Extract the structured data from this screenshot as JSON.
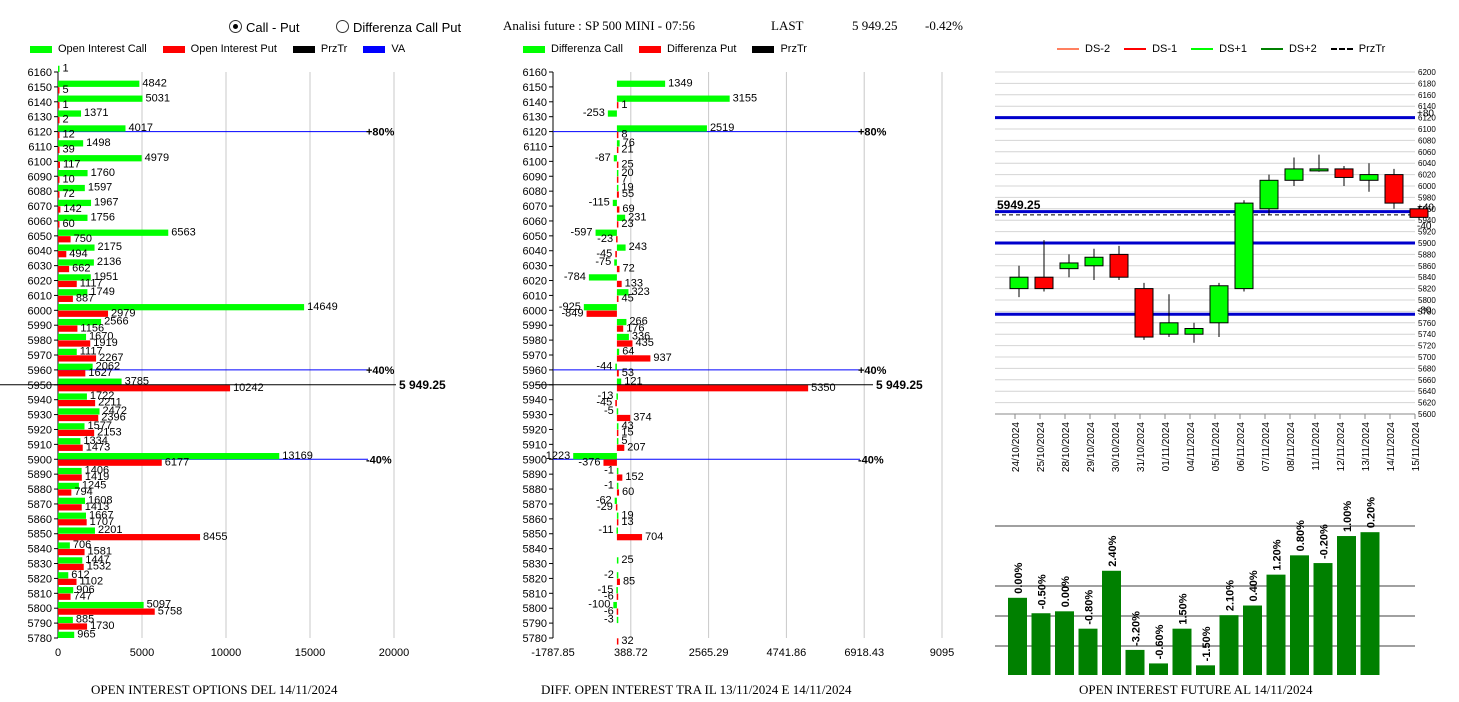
{
  "header": {
    "radio_call_put": "Call - Put",
    "radio_diff": "Differenza Call Put",
    "title": "Analisi future : SP 500 MINI - 07:56",
    "last_label": "LAST",
    "last_value": "5 949.25",
    "last_change": "-0.42%"
  },
  "panel1": {
    "legend": [
      {
        "label": "Open Interest Call",
        "color": "#00ff00",
        "kind": "box"
      },
      {
        "label": "Open Interest Put",
        "color": "#ff0000",
        "kind": "box"
      },
      {
        "label": "PrzTr",
        "color": "#000000",
        "kind": "box"
      },
      {
        "label": "VA",
        "color": "#0000ff",
        "kind": "box"
      }
    ],
    "caption": "OPEN INTEREST OPTIONS DEL 14/11/2024"
  },
  "panel2": {
    "legend": [
      {
        "label": "Differenza Call",
        "color": "#00ff00",
        "kind": "box"
      },
      {
        "label": "Differenza Put",
        "color": "#ff0000",
        "kind": "box"
      },
      {
        "label": "PrzTr",
        "color": "#000000",
        "kind": "box"
      }
    ],
    "caption": "DIFF. OPEN INTEREST TRA IL 13/11/2024 E 14/11/2024"
  },
  "panel3": {
    "legend": [
      {
        "label": "DS-2",
        "color": "#ff8060",
        "kind": "line"
      },
      {
        "label": "DS-1",
        "color": "#ff0000",
        "kind": "line"
      },
      {
        "label": "DS+1",
        "color": "#00ff00",
        "kind": "line"
      },
      {
        "label": "DS+2",
        "color": "#008000",
        "kind": "line"
      },
      {
        "label": "PrzTr",
        "color": "#000000",
        "kind": "dash"
      }
    ],
    "caption": "OPEN INTEREST FUTURE AL 14/11/2024"
  },
  "chart_data": [
    {
      "type": "bar",
      "orientation": "horizontal",
      "title": "OPEN INTEREST OPTIONS DEL 14/11/2024",
      "categories": [
        6160,
        6150,
        6140,
        6130,
        6120,
        6110,
        6100,
        6090,
        6080,
        6070,
        6060,
        6050,
        6040,
        6030,
        6020,
        6010,
        6000,
        5990,
        5980,
        5970,
        5960,
        5950,
        5940,
        5930,
        5920,
        5910,
        5900,
        5890,
        5880,
        5870,
        5860,
        5850,
        5840,
        5830,
        5820,
        5810,
        5800,
        5790,
        5780
      ],
      "series": [
        {
          "name": "Open Interest Call",
          "color": "#00ff00",
          "values": [
            1,
            4842,
            5031,
            1371,
            4017,
            1498,
            4979,
            1760,
            1597,
            1967,
            1756,
            6563,
            2175,
            2136,
            1951,
            1749,
            14649,
            2566,
            1670,
            1117,
            2062,
            3785,
            1722,
            2472,
            1577,
            1334,
            13169,
            1406,
            1245,
            1608,
            1667,
            2201,
            706,
            1447,
            612,
            906,
            5097,
            885,
            965
          ]
        },
        {
          "name": "Open Interest Put",
          "color": "#ff0000",
          "values": [
            null,
            5,
            1,
            2,
            12,
            39,
            117,
            10,
            72,
            142,
            60,
            750,
            494,
            662,
            1117,
            887,
            2979,
            1156,
            1919,
            2267,
            1627,
            10242,
            2211,
            2396,
            2153,
            1473,
            6177,
            1419,
            794,
            1413,
            1707,
            8455,
            1581,
            1532,
            1102,
            747,
            5758,
            1730,
            null
          ]
        }
      ],
      "xticks": [
        0,
        5000,
        10000,
        15000,
        20000
      ],
      "xlim": [
        0,
        20000
      ],
      "ref_lines": [
        {
          "label": "+80%",
          "at": 6120
        },
        {
          "label": "+40%",
          "at": 5960
        },
        {
          "label": "-40%",
          "at": 5900
        }
      ],
      "price_line": {
        "label": "5 949.25",
        "at": 5950
      }
    },
    {
      "type": "bar",
      "orientation": "horizontal",
      "title": "DIFF. OPEN INTEREST TRA IL 13/11/2024 E 14/11/2024",
      "categories": [
        6160,
        6150,
        6140,
        6130,
        6120,
        6110,
        6100,
        6090,
        6080,
        6070,
        6060,
        6050,
        6040,
        6030,
        6020,
        6010,
        6000,
        5990,
        5980,
        5970,
        5960,
        5950,
        5940,
        5930,
        5920,
        5910,
        5900,
        5890,
        5880,
        5870,
        5860,
        5850,
        5840,
        5830,
        5820,
        5810,
        5800,
        5790,
        5780
      ],
      "series": [
        {
          "name": "Differenza Call",
          "color": "#00ff00",
          "values": [
            null,
            1349,
            3155,
            -253,
            2519,
            76,
            -87,
            20,
            19,
            -115,
            231,
            -597,
            243,
            -75,
            -784,
            323,
            -925,
            266,
            336,
            64,
            -44,
            121,
            -13,
            -5,
            43,
            5,
            -1223,
            -1,
            -1,
            -62,
            19,
            -11,
            null,
            25,
            -2,
            -15,
            -100,
            -3,
            null
          ]
        },
        {
          "name": "Differenza Put",
          "color": "#ff0000",
          "values": [
            null,
            null,
            1,
            null,
            8,
            21,
            25,
            7,
            55,
            69,
            23,
            -23,
            -45,
            72,
            133,
            45,
            -849,
            176,
            435,
            937,
            53,
            5350,
            -45,
            374,
            15,
            207,
            -376,
            152,
            60,
            -29,
            13,
            704,
            null,
            null,
            85,
            -6,
            -6,
            null,
            32
          ]
        }
      ],
      "xticks": [
        -1787.85,
        388.72,
        2565.29,
        4741.86,
        6918.43,
        9095
      ],
      "xlim": [
        -1787.85,
        9095
      ],
      "ref_lines": [
        {
          "label": "+80%",
          "at": 6120
        },
        {
          "label": "+40%",
          "at": 5960
        },
        {
          "label": "-40%",
          "at": 5900
        }
      ],
      "price_line": {
        "label": "5 949.25",
        "at": 5950
      }
    },
    {
      "type": "candlestick",
      "dates": [
        "24/10/2024",
        "25/10/2024",
        "28/10/2024",
        "29/10/2024",
        "30/10/2024",
        "31/10/2024",
        "01/11/2024",
        "04/11/2024",
        "05/11/2024",
        "06/11/2024",
        "07/11/2024",
        "08/11/2024",
        "11/11/2024",
        "12/11/2024",
        "13/11/2024",
        "14/11/2024",
        "15/11/2024"
      ],
      "open": [
        5820,
        5840,
        5855,
        5860,
        5880,
        5820,
        5740,
        5740,
        5760,
        5820,
        5960,
        6010,
        6030,
        6030,
        6010,
        6020,
        5960
      ],
      "close": [
        5840,
        5820,
        5865,
        5875,
        5840,
        5735,
        5760,
        5750,
        5825,
        5970,
        6010,
        6030,
        6030,
        6015,
        6020,
        5970,
        5945
      ],
      "high": [
        5860,
        5905,
        5880,
        5890,
        5895,
        5830,
        5810,
        5760,
        5830,
        5975,
        6020,
        6050,
        6055,
        6035,
        6040,
        6030,
        5965
      ],
      "low": [
        5805,
        5815,
        5840,
        5835,
        5835,
        5730,
        5735,
        5725,
        5735,
        5815,
        5950,
        6000,
        6025,
        6000,
        5990,
        5960,
        5940
      ],
      "ylim": [
        5600,
        6200
      ],
      "yticks": [
        5600,
        5620,
        5640,
        5660,
        5680,
        5700,
        5720,
        5740,
        5760,
        5780,
        5800,
        5820,
        5840,
        5860,
        5880,
        5900,
        5920,
        5940,
        5960,
        5980,
        6000,
        6020,
        6040,
        6060,
        6080,
        6100,
        6120,
        6140,
        6160,
        6180,
        6200
      ],
      "hlines": [
        {
          "at": 6120,
          "label": "+80"
        },
        {
          "at": 5955,
          "label": "+40"
        },
        {
          "at": 5900,
          "label": ""
        },
        {
          "at": 5775,
          "label": "-80"
        }
      ],
      "side_label_minus40": "-40",
      "price_label": "5949.25",
      "price": 5949.25
    },
    {
      "type": "bar",
      "categories": [
        "24/10/2024",
        "25/10/2024",
        "28/10/2024",
        "29/10/2024",
        "30/10/2024",
        "31/10/2024",
        "01/11/2024",
        "04/11/2024",
        "05/11/2024",
        "06/11/2024",
        "07/11/2024",
        "08/11/2024",
        "11/11/2024",
        "12/11/2024",
        "13/11/2024",
        "14/11/2024",
        "15/11/2024"
      ],
      "values": [
        0.0,
        -0.5,
        0.0,
        -0.8,
        2.4,
        -3.2,
        -0.6,
        1.5,
        -1.5,
        2.1,
        0.4,
        1.2,
        0.8,
        -0.2,
        1.0,
        0.2
      ],
      "labels": [
        "0.00%",
        "-0.50%",
        "0.00%",
        "-0.80%",
        "2.40%",
        "-3.20%",
        "-0.60%",
        "1.50%",
        "-1.50%",
        "2.10%",
        "0.40%",
        "1.20%",
        "0.80%",
        "-0.20%",
        "1.00%",
        "0.20%"
      ],
      "level": [
        0.4,
        0.32,
        0.33,
        0.24,
        0.54,
        0.13,
        0.06,
        0.24,
        0.05,
        0.31,
        0.36,
        0.52,
        0.62,
        0.58,
        0.72,
        0.74
      ],
      "title": "OPEN INTEREST FUTURE AL 14/11/2024"
    }
  ]
}
